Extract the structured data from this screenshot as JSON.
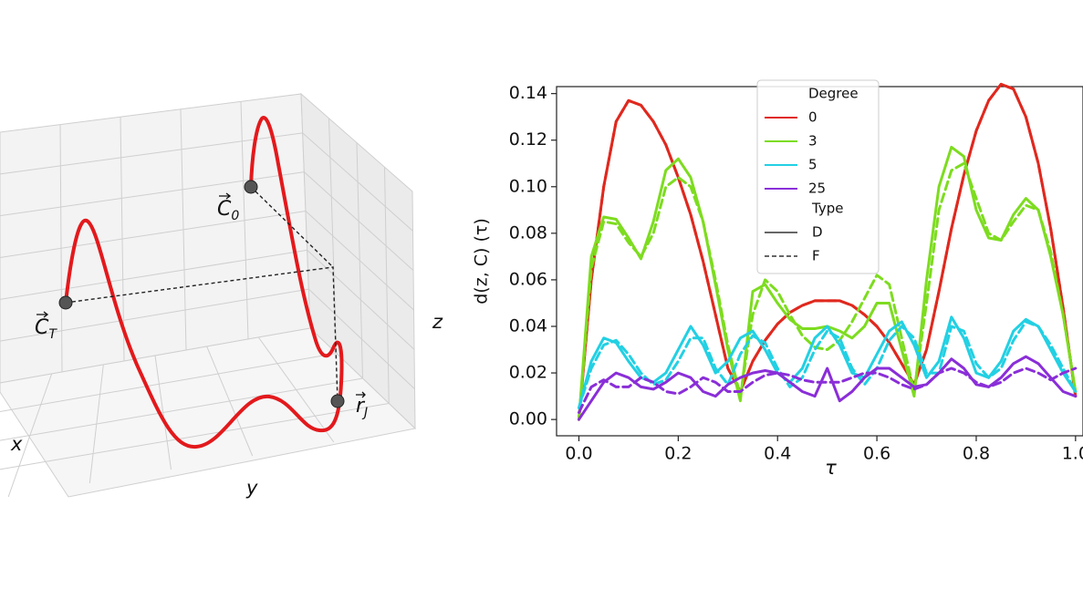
{
  "panel_3d": {
    "axis_labels": {
      "x": "x",
      "y": "y",
      "z": "z"
    },
    "points": [
      {
        "symbol": "C",
        "sub": "0"
      },
      {
        "symbol": "C",
        "sub": "T"
      },
      {
        "symbol": "r",
        "sub": "J"
      }
    ]
  },
  "chart_data": {
    "type": "line",
    "xlabel": "τ",
    "ylabel": "d(z, C) (τ)",
    "xlim": [
      -0.045,
      1.015
    ],
    "ylim": [
      -0.007,
      0.143
    ],
    "xticks": [
      {
        "value": 0,
        "label": "0.0"
      },
      {
        "value": 0.2,
        "label": "0.2"
      },
      {
        "value": 0.4,
        "label": "0.4"
      },
      {
        "value": 0.6,
        "label": "0.6"
      },
      {
        "value": 0.8,
        "label": "0.8"
      },
      {
        "value": 1,
        "label": "1.0"
      }
    ],
    "yticks": [
      {
        "value": 0,
        "label": "0.00"
      },
      {
        "value": 0.02,
        "label": "0.02"
      },
      {
        "value": 0.04,
        "label": "0.04"
      },
      {
        "value": 0.06,
        "label": "0.06"
      },
      {
        "value": 0.08,
        "label": "0.08"
      },
      {
        "value": 0.1,
        "label": "0.10"
      },
      {
        "value": 0.12,
        "label": "0.12"
      },
      {
        "value": 0.14,
        "label": "0.14"
      }
    ],
    "grid": false,
    "legend_position": "upper center",
    "hue_title": "Degree",
    "style_title": "Type",
    "types": [
      {
        "name": "D",
        "dash": "none"
      },
      {
        "name": "F",
        "dash": "9 5"
      }
    ],
    "x": [
      0,
      0.025,
      0.05,
      0.075,
      0.1,
      0.125,
      0.15,
      0.175,
      0.2,
      0.225,
      0.25,
      0.275,
      0.3,
      0.325,
      0.35,
      0.375,
      0.4,
      0.425,
      0.45,
      0.475,
      0.5,
      0.525,
      0.55,
      0.575,
      0.6,
      0.625,
      0.65,
      0.675,
      0.7,
      0.725,
      0.75,
      0.775,
      0.8,
      0.825,
      0.85,
      0.875,
      0.9,
      0.925,
      0.95,
      0.975,
      1
    ],
    "series": [
      {
        "name": "0",
        "color": "#e0281e",
        "values": [
          [
            0,
            0.06,
            0.1,
            0.128,
            0.137,
            0.135,
            0.128,
            0.118,
            0.104,
            0.088,
            0.068,
            0.045,
            0.022,
            0.012,
            0.025,
            0.034,
            0.041,
            0.046,
            0.049,
            0.051,
            0.051,
            0.051,
            0.049,
            0.045,
            0.04,
            0.033,
            0.024,
            0.015,
            0.03,
            0.055,
            0.082,
            0.105,
            0.124,
            0.137,
            0.144,
            0.142,
            0.13,
            0.11,
            0.082,
            0.048,
            0.01
          ],
          [
            0,
            0.06,
            0.1,
            0.128,
            0.137,
            0.135,
            0.128,
            0.118,
            0.104,
            0.088,
            0.068,
            0.045,
            0.022,
            0.012,
            0.025,
            0.034,
            0.041,
            0.046,
            0.049,
            0.051,
            0.051,
            0.051,
            0.049,
            0.045,
            0.04,
            0.033,
            0.024,
            0.015,
            0.03,
            0.055,
            0.082,
            0.105,
            0.124,
            0.137,
            0.144,
            0.142,
            0.13,
            0.11,
            0.082,
            0.048,
            0.01
          ]
        ]
      },
      {
        "name": "3",
        "color": "#7ddc1f",
        "values": [
          [
            0,
            0.07,
            0.087,
            0.086,
            0.078,
            0.069,
            0.085,
            0.107,
            0.112,
            0.104,
            0.085,
            0.058,
            0.03,
            0.008,
            0.055,
            0.058,
            0.05,
            0.043,
            0.039,
            0.039,
            0.04,
            0.038,
            0.035,
            0.04,
            0.05,
            0.05,
            0.03,
            0.01,
            0.06,
            0.1,
            0.117,
            0.113,
            0.09,
            0.078,
            0.077,
            0.088,
            0.095,
            0.09,
            0.07,
            0.045,
            0.012
          ],
          [
            0,
            0.065,
            0.085,
            0.084,
            0.076,
            0.07,
            0.08,
            0.1,
            0.104,
            0.1,
            0.085,
            0.06,
            0.032,
            0.01,
            0.045,
            0.06,
            0.055,
            0.045,
            0.036,
            0.031,
            0.03,
            0.034,
            0.042,
            0.052,
            0.062,
            0.058,
            0.035,
            0.012,
            0.05,
            0.09,
            0.107,
            0.11,
            0.095,
            0.08,
            0.077,
            0.085,
            0.092,
            0.09,
            0.072,
            0.045,
            0.012
          ]
        ]
      },
      {
        "name": "5",
        "color": "#22d0e3",
        "values": [
          [
            0.005,
            0.025,
            0.035,
            0.033,
            0.025,
            0.018,
            0.016,
            0.02,
            0.03,
            0.04,
            0.032,
            0.02,
            0.025,
            0.035,
            0.038,
            0.03,
            0.02,
            0.016,
            0.022,
            0.035,
            0.04,
            0.032,
            0.02,
            0.018,
            0.028,
            0.038,
            0.042,
            0.032,
            0.018,
            0.025,
            0.044,
            0.035,
            0.02,
            0.018,
            0.025,
            0.038,
            0.043,
            0.04,
            0.03,
            0.02,
            0.012
          ],
          [
            0.005,
            0.022,
            0.032,
            0.034,
            0.028,
            0.02,
            0.015,
            0.017,
            0.025,
            0.035,
            0.035,
            0.022,
            0.015,
            0.028,
            0.036,
            0.033,
            0.022,
            0.014,
            0.018,
            0.03,
            0.038,
            0.035,
            0.022,
            0.015,
            0.022,
            0.034,
            0.04,
            0.035,
            0.02,
            0.02,
            0.04,
            0.038,
            0.024,
            0.018,
            0.022,
            0.034,
            0.042,
            0.04,
            0.032,
            0.022,
            0.012
          ]
        ]
      },
      {
        "name": "25",
        "color": "#8a2ed8",
        "values": [
          [
            0,
            0.008,
            0.016,
            0.02,
            0.018,
            0.014,
            0.013,
            0.016,
            0.02,
            0.018,
            0.012,
            0.01,
            0.015,
            0.018,
            0.02,
            0.021,
            0.02,
            0.016,
            0.012,
            0.01,
            0.022,
            0.008,
            0.012,
            0.018,
            0.022,
            0.022,
            0.018,
            0.014,
            0.015,
            0.02,
            0.026,
            0.022,
            0.015,
            0.014,
            0.018,
            0.024,
            0.027,
            0.024,
            0.018,
            0.012,
            0.01
          ],
          [
            0.003,
            0.014,
            0.017,
            0.014,
            0.014,
            0.018,
            0.016,
            0.012,
            0.011,
            0.014,
            0.018,
            0.016,
            0.012,
            0.012,
            0.016,
            0.019,
            0.02,
            0.019,
            0.017,
            0.016,
            0.016,
            0.016,
            0.018,
            0.02,
            0.02,
            0.018,
            0.015,
            0.013,
            0.015,
            0.02,
            0.022,
            0.02,
            0.016,
            0.014,
            0.016,
            0.02,
            0.022,
            0.02,
            0.017,
            0.02,
            0.022
          ]
        ]
      }
    ]
  }
}
